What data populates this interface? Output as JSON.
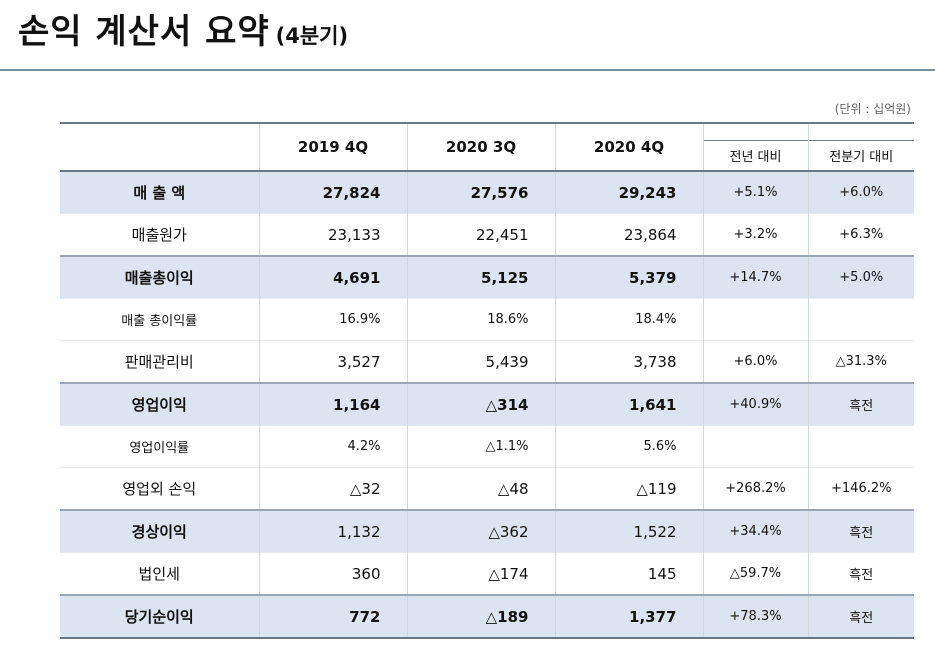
{
  "title": "손익 계산서 요약",
  "subtitle": "(4분기)",
  "unit_note": "(단위 : 십억원)",
  "table": {
    "header": {
      "label": "",
      "cols": [
        "2019 4Q",
        "2020 3Q",
        "2020 4Q"
      ],
      "cmp": [
        "전년 대비",
        "전분기 대비"
      ]
    },
    "rows": [
      {
        "label": "매 출 액",
        "v": [
          "27,824",
          "27,576",
          "29,243"
        ],
        "c": [
          "+5.1%",
          "+6.0%"
        ]
      },
      {
        "label": "매출원가",
        "v": [
          "23,133",
          "22,451",
          "23,864"
        ],
        "c": [
          "+3.2%",
          "+6.3%"
        ]
      },
      {
        "label": "매출총이익",
        "v": [
          "4,691",
          "5,125",
          "5,379"
        ],
        "c": [
          "+14.7%",
          "+5.0%"
        ]
      },
      {
        "label": "매출 총이익률",
        "v": [
          "16.9%",
          "18.6%",
          "18.4%"
        ],
        "c": [
          "",
          ""
        ]
      },
      {
        "label": "판매관리비",
        "v": [
          "3,527",
          "5,439",
          "3,738"
        ],
        "c": [
          "+6.0%",
          "△31.3%"
        ]
      },
      {
        "label": "영업이익",
        "v": [
          "1,164",
          "△314",
          "1,641"
        ],
        "c": [
          "+40.9%",
          "흑전"
        ]
      },
      {
        "label": "영업이익률",
        "v": [
          "4.2%",
          "△1.1%",
          "5.6%"
        ],
        "c": [
          "",
          ""
        ]
      },
      {
        "label": "영업외 손익",
        "v": [
          "△32",
          "△48",
          "△119"
        ],
        "c": [
          "+268.2%",
          "+146.2%"
        ]
      },
      {
        "label": "경상이익",
        "v": [
          "1,132",
          "△362",
          "1,522"
        ],
        "c": [
          "+34.4%",
          "흑전"
        ]
      },
      {
        "label": "법인세",
        "v": [
          "360",
          "△174",
          "145"
        ],
        "c": [
          "△59.7%",
          "흑전"
        ]
      },
      {
        "label": "당기순이익",
        "v": [
          "772",
          "△189",
          "1,377"
        ],
        "c": [
          "+78.3%",
          "흑전"
        ]
      }
    ]
  }
}
